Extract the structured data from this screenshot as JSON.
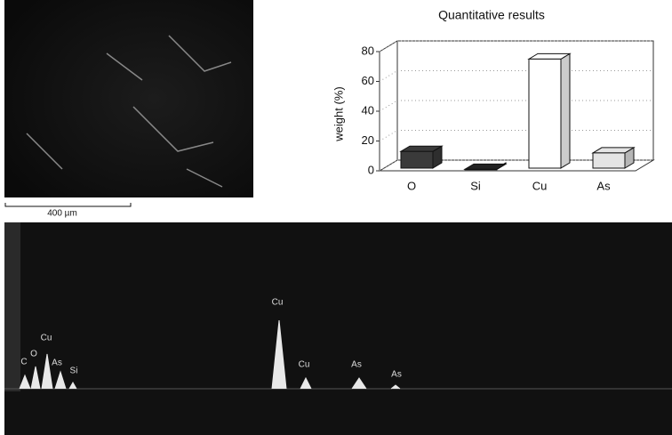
{
  "chart_data": {
    "type": "bar3d",
    "title": "Quantitative results",
    "y_label": "weight (%)",
    "categories": [
      "O",
      "Si",
      "Cu",
      "As"
    ],
    "values": [
      13,
      1,
      75,
      12
    ],
    "colors": [
      "#3a3a3a",
      "#222222",
      "#ffffff",
      "#e4e4e4"
    ],
    "ylim": [
      0,
      80
    ],
    "yticks": [
      0,
      20,
      40,
      60,
      80
    ],
    "grid": true
  },
  "micrograph": {
    "scale_label": "400 µm"
  },
  "spectrum": {
    "peak_labels": [
      "C",
      "O",
      "Cu",
      "As",
      "Si",
      "Cu",
      "Cu",
      "As",
      "As"
    ]
  }
}
